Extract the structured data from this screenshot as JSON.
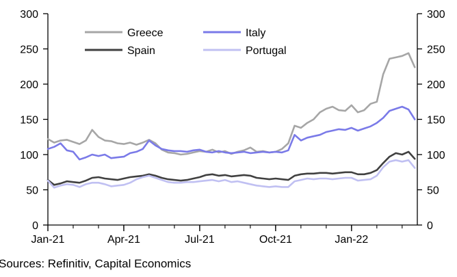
{
  "chart_data": {
    "type": "line",
    "title": "",
    "xlabel": "",
    "ylabel": "",
    "ylim": [
      0,
      300
    ],
    "yticks": [
      0,
      50,
      100,
      150,
      200,
      250,
      300
    ],
    "xlim": [
      0,
      14.6
    ],
    "xticks": [
      {
        "label": "Jan-21",
        "x": 0
      },
      {
        "label": "Apr-21",
        "x": 3
      },
      {
        "label": "Jul-21",
        "x": 6
      },
      {
        "label": "Oct-21",
        "x": 9
      },
      {
        "label": "Jan-22",
        "x": 12
      }
    ],
    "legend_position": "top-left",
    "series": [
      {
        "name": "Greece",
        "color": "#a6a6a6",
        "x": [
          0,
          0.25,
          0.5,
          0.75,
          1,
          1.25,
          1.5,
          1.75,
          2,
          2.25,
          2.5,
          2.75,
          3,
          3.25,
          3.5,
          3.75,
          4,
          4.25,
          4.5,
          4.75,
          5,
          5.25,
          5.5,
          5.75,
          6,
          6.25,
          6.5,
          6.75,
          7,
          7.25,
          7.5,
          7.75,
          8,
          8.25,
          8.5,
          8.75,
          9,
          9.25,
          9.5,
          9.75,
          10,
          10.25,
          10.5,
          10.75,
          11,
          11.25,
          11.5,
          11.75,
          12,
          12.25,
          12.5,
          12.75,
          13,
          13.25,
          13.5,
          13.75,
          14,
          14.25,
          14.5
        ],
        "values": [
          122,
          117,
          120,
          121,
          118,
          115,
          120,
          135,
          125,
          120,
          119,
          116,
          115,
          117,
          114,
          117,
          121,
          116,
          107,
          103,
          102,
          100,
          101,
          103,
          105,
          104,
          107,
          103,
          105,
          101,
          104,
          106,
          110,
          104,
          105,
          103,
          104,
          108,
          116,
          141,
          138,
          145,
          150,
          160,
          165,
          168,
          163,
          162,
          170,
          160,
          163,
          172,
          175,
          214,
          236,
          238,
          240,
          244,
          224
        ]
      },
      {
        "name": "Spain",
        "color": "#404040",
        "x": [
          0,
          0.25,
          0.5,
          0.75,
          1,
          1.25,
          1.5,
          1.75,
          2,
          2.25,
          2.5,
          2.75,
          3,
          3.25,
          3.5,
          3.75,
          4,
          4.25,
          4.5,
          4.75,
          5,
          5.25,
          5.5,
          5.75,
          6,
          6.25,
          6.5,
          6.75,
          7,
          7.25,
          7.5,
          7.75,
          8,
          8.25,
          8.5,
          8.75,
          9,
          9.25,
          9.5,
          9.75,
          10,
          10.25,
          10.5,
          10.75,
          11,
          11.25,
          11.5,
          11.75,
          12,
          12.25,
          12.5,
          12.75,
          13,
          13.25,
          13.5,
          13.75,
          14,
          14.25,
          14.5
        ],
        "values": [
          64,
          57,
          59,
          62,
          61,
          60,
          63,
          67,
          68,
          66,
          65,
          64,
          66,
          68,
          69,
          70,
          72,
          70,
          67,
          65,
          64,
          63,
          64,
          66,
          68,
          71,
          72,
          70,
          71,
          69,
          70,
          71,
          70,
          67,
          66,
          65,
          66,
          65,
          64,
          70,
          72,
          73,
          73,
          74,
          74,
          73,
          74,
          75,
          75,
          72,
          72,
          74,
          78,
          88,
          97,
          102,
          100,
          104,
          94
        ]
      },
      {
        "name": "Italy",
        "color": "#7a7ae8",
        "x": [
          0,
          0.25,
          0.5,
          0.75,
          1,
          1.25,
          1.5,
          1.75,
          2,
          2.25,
          2.5,
          2.75,
          3,
          3.25,
          3.5,
          3.75,
          4,
          4.25,
          4.5,
          4.75,
          5,
          5.25,
          5.5,
          5.75,
          6,
          6.25,
          6.5,
          6.75,
          7,
          7.25,
          7.5,
          7.75,
          8,
          8.25,
          8.5,
          8.75,
          9,
          9.25,
          9.5,
          9.75,
          10,
          10.25,
          10.5,
          10.75,
          11,
          11.25,
          11.5,
          11.75,
          12,
          12.25,
          12.5,
          12.75,
          13,
          13.25,
          13.5,
          13.75,
          14,
          14.25,
          14.5
        ],
        "values": [
          108,
          111,
          116,
          106,
          104,
          93,
          96,
          100,
          98,
          100,
          95,
          96,
          97,
          102,
          104,
          108,
          120,
          113,
          108,
          106,
          105,
          105,
          104,
          106,
          107,
          104,
          103,
          105,
          103,
          102,
          103,
          104,
          102,
          103,
          104,
          103,
          104,
          103,
          106,
          128,
          120,
          124,
          126,
          128,
          132,
          134,
          136,
          135,
          138,
          134,
          137,
          140,
          145,
          152,
          162,
          165,
          168,
          164,
          150
        ]
      },
      {
        "name": "Portugal",
        "color": "#c0c0f2",
        "x": [
          0,
          0.25,
          0.5,
          0.75,
          1,
          1.25,
          1.5,
          1.75,
          2,
          2.25,
          2.5,
          2.75,
          3,
          3.25,
          3.5,
          3.75,
          4,
          4.25,
          4.5,
          4.75,
          5,
          5.25,
          5.5,
          5.75,
          6,
          6.25,
          6.5,
          6.75,
          7,
          7.25,
          7.5,
          7.75,
          8,
          8.25,
          8.5,
          8.75,
          9,
          9.25,
          9.5,
          9.75,
          10,
          10.25,
          10.5,
          10.75,
          11,
          11.25,
          11.5,
          11.75,
          12,
          12.25,
          12.5,
          12.75,
          13,
          13.25,
          13.5,
          13.75,
          14,
          14.25,
          14.5
        ],
        "values": [
          63,
          53,
          56,
          58,
          57,
          54,
          58,
          60,
          60,
          58,
          55,
          56,
          57,
          60,
          65,
          68,
          70,
          67,
          64,
          61,
          60,
          60,
          61,
          61,
          62,
          63,
          64,
          62,
          64,
          61,
          62,
          60,
          58,
          56,
          55,
          54,
          55,
          54,
          54,
          62,
          64,
          66,
          65,
          66,
          66,
          65,
          66,
          67,
          67,
          63,
          64,
          65,
          70,
          82,
          90,
          92,
          90,
          92,
          81
        ]
      }
    ],
    "source": "Sources: Refinitiv, Capital Economics"
  }
}
